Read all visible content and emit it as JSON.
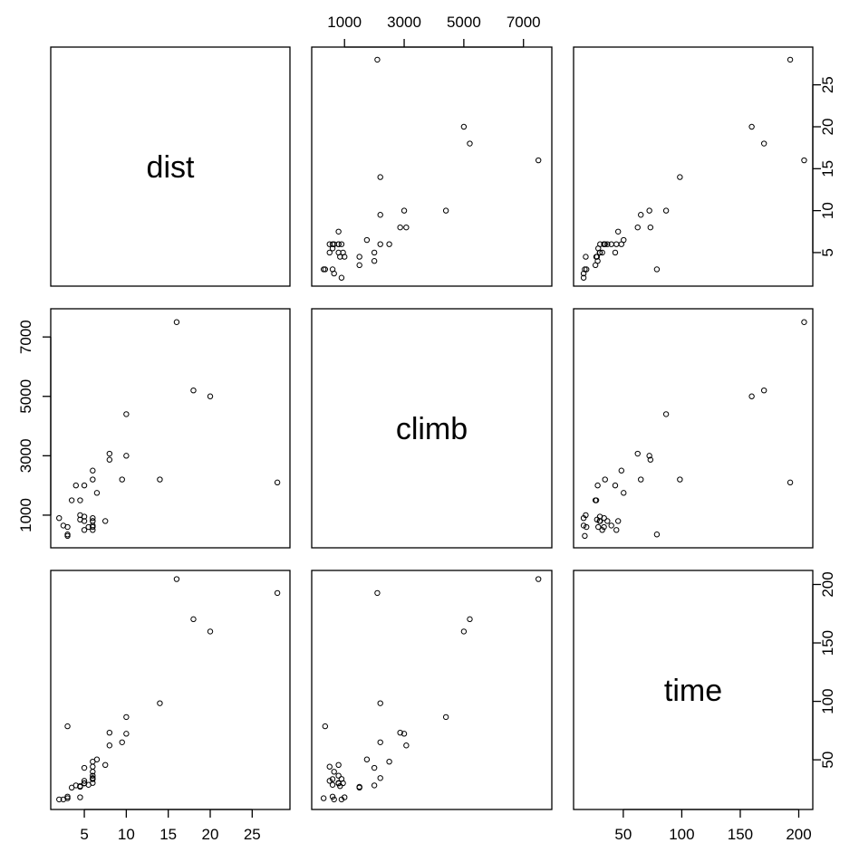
{
  "chart_data": {
    "type": "scatter",
    "variables": [
      "dist",
      "climb",
      "time"
    ],
    "diagonal_labels": [
      "dist",
      "climb",
      "time"
    ],
    "axes": {
      "dist": {
        "range": [
          1.0,
          29.5
        ],
        "ticks": [
          5,
          10,
          15,
          20,
          25
        ],
        "tick_labels": [
          "5",
          "10",
          "15",
          "20",
          "25"
        ]
      },
      "climb": {
        "range": [
          -100,
          7950
        ],
        "ticks": [
          1000,
          3000,
          5000,
          7000
        ],
        "tick_labels": [
          "1000",
          "3000",
          "5000",
          "7000"
        ]
      },
      "time": {
        "range": [
          7.5,
          212.0
        ],
        "ticks": [
          50,
          100,
          150,
          200
        ],
        "tick_labels": [
          "50",
          "100",
          "150",
          "200"
        ]
      }
    },
    "point_style": {
      "shape": "open-circle",
      "color": "#000000"
    },
    "points": [
      {
        "dist": 2.5,
        "climb": 650,
        "time": 16.1
      },
      {
        "dist": 6.0,
        "climb": 2500,
        "time": 48.4
      },
      {
        "dist": 6.0,
        "climb": 900,
        "time": 33.6
      },
      {
        "dist": 7.5,
        "climb": 800,
        "time": 45.6
      },
      {
        "dist": 8.0,
        "climb": 3070,
        "time": 62.3
      },
      {
        "dist": 8.0,
        "climb": 2866,
        "time": 73.2
      },
      {
        "dist": 16.0,
        "climb": 7500,
        "time": 204.6
      },
      {
        "dist": 6.0,
        "climb": 800,
        "time": 36.4
      },
      {
        "dist": 5.0,
        "climb": 800,
        "time": 29.8
      },
      {
        "dist": 6.0,
        "climb": 650,
        "time": 39.8
      },
      {
        "dist": 28.0,
        "climb": 2100,
        "time": 192.7
      },
      {
        "dist": 5.0,
        "climb": 2000,
        "time": 43.1
      },
      {
        "dist": 9.5,
        "climb": 2200,
        "time": 65.0
      },
      {
        "dist": 6.0,
        "climb": 500,
        "time": 44.1
      },
      {
        "dist": 4.5,
        "climb": 1500,
        "time": 26.9
      },
      {
        "dist": 10.0,
        "climb": 3000,
        "time": 72.3
      },
      {
        "dist": 14.0,
        "climb": 2200,
        "time": 98.4
      },
      {
        "dist": 3.0,
        "climb": 350,
        "time": 78.7
      },
      {
        "dist": 4.5,
        "climb": 1000,
        "time": 17.9
      },
      {
        "dist": 5.5,
        "climb": 600,
        "time": 28.6
      },
      {
        "dist": 3.0,
        "climb": 300,
        "time": 17.1
      },
      {
        "dist": 3.5,
        "climb": 1500,
        "time": 26.2
      },
      {
        "dist": 6.0,
        "climb": 2200,
        "time": 34.4
      },
      {
        "dist": 2.0,
        "climb": 900,
        "time": 16.1
      },
      {
        "dist": 3.0,
        "climb": 600,
        "time": 18.5
      },
      {
        "dist": 4.0,
        "climb": 2000,
        "time": 28.1
      },
      {
        "dist": 6.0,
        "climb": 800,
        "time": 30.2
      },
      {
        "dist": 5.0,
        "climb": 950,
        "time": 30.0
      },
      {
        "dist": 6.5,
        "climb": 1750,
        "time": 50.3
      },
      {
        "dist": 5.0,
        "climb": 500,
        "time": 32.0
      },
      {
        "dist": 10.0,
        "climb": 4400,
        "time": 86.6
      },
      {
        "dist": 6.0,
        "climb": 600,
        "time": 33.5
      },
      {
        "dist": 18.0,
        "climb": 5200,
        "time": 170.3
      },
      {
        "dist": 4.5,
        "climb": 850,
        "time": 27.5
      },
      {
        "dist": 20.0,
        "climb": 5000,
        "time": 159.8
      }
    ]
  }
}
